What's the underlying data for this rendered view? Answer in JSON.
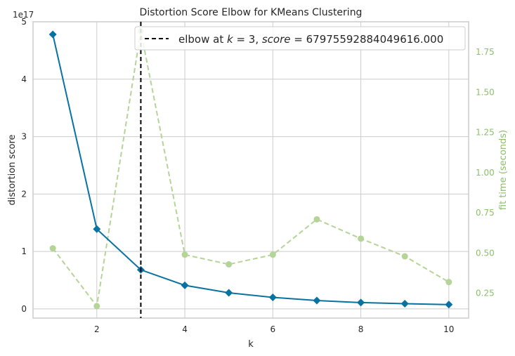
{
  "chart_data": {
    "type": "line",
    "title": "Distortion Score Elbow for KMeans Clustering",
    "xlabel": "k",
    "ylabel": "distortion score",
    "y2label": "fit time (seconds)",
    "offset_label": "1e17",
    "x": [
      1,
      2,
      3,
      4,
      5,
      6,
      7,
      8,
      9,
      10
    ],
    "xlim": [
      0.55,
      10.45
    ],
    "xticks": [
      2,
      4,
      6,
      8,
      10
    ],
    "ylim": [
      -0.16,
      5.0
    ],
    "yticks": [
      0,
      1,
      2,
      3,
      4,
      5
    ],
    "y2lim": [
      0.096,
      1.938
    ],
    "y2ticks": [
      0.25,
      0.5,
      0.75,
      1.0,
      1.25,
      1.5,
      1.75
    ],
    "y2tick_labels": [
      "0.25",
      "0.50",
      "0.75",
      "1.00",
      "1.25",
      "1.50",
      "1.75"
    ],
    "series": [
      {
        "axis": "left",
        "color": "#0872a2",
        "marker": "diamond",
        "values": [
          4.78,
          1.39,
          0.68,
          0.41,
          0.28,
          0.2,
          0.145,
          0.11,
          0.09,
          0.075
        ]
      },
      {
        "axis": "right",
        "color": "#b5d497",
        "marker": "circle",
        "dashed": true,
        "values": [
          0.53,
          0.17,
          1.88,
          0.49,
          0.43,
          0.49,
          0.71,
          0.59,
          0.48,
          0.32
        ]
      }
    ],
    "elbow": {
      "x": 3,
      "label": "elbow at $k=3$, $score=679755928840496l6.000$"
    },
    "legend": {
      "placement": "top-right",
      "label_parts": [
        "elbow at ",
        "k",
        " = 3, ",
        "score",
        " = 67975592884049616.000"
      ]
    },
    "grid": true,
    "colors": {
      "grid": "#cccccc",
      "spine": "#cccccc",
      "elbow_line": "#000000",
      "right_axis": "#8cbf6a"
    }
  }
}
